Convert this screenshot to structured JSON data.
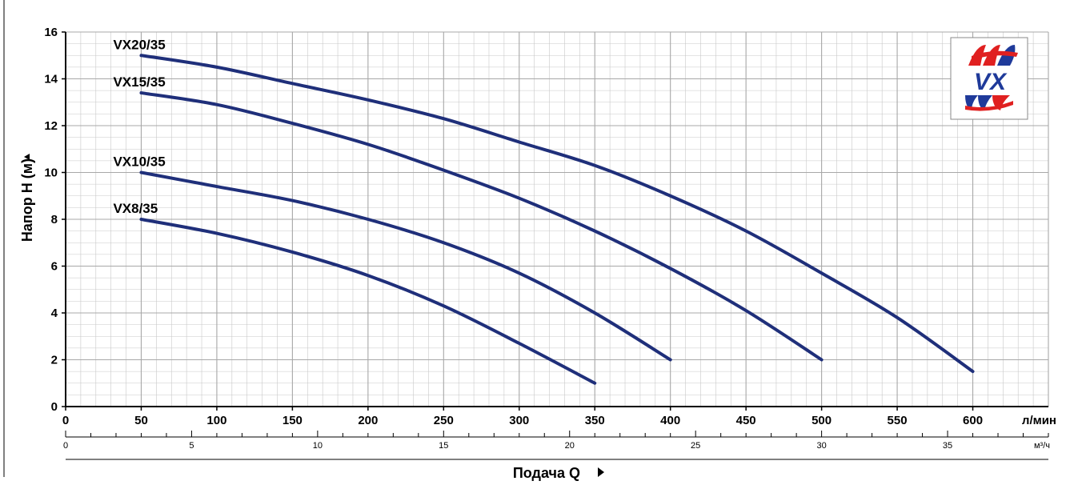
{
  "chart_data": {
    "type": "line",
    "xlabel": "Подача Q",
    "ylabel": "Напор H  (м)",
    "x_unit": "л/мин",
    "x2_unit": "м³/ч",
    "xlim": [
      0,
      650
    ],
    "ylim": [
      0,
      16
    ],
    "x2lim": [
      0,
      39
    ],
    "x_ticks": [
      0,
      50,
      100,
      150,
      200,
      250,
      300,
      350,
      400,
      450,
      500,
      550,
      600
    ],
    "x2_ticks": [
      0,
      5,
      10,
      15,
      20,
      25,
      30,
      35
    ],
    "y_ticks": [
      0,
      2,
      4,
      6,
      8,
      10,
      12,
      14,
      16
    ],
    "grid": true,
    "line_color": "#1f2f7a",
    "series": [
      {
        "name": "VX20/35",
        "x": [
          50,
          100,
          150,
          200,
          250,
          300,
          350,
          400,
          450,
          500,
          550,
          600
        ],
        "y": [
          15.0,
          14.5,
          13.8,
          13.1,
          12.3,
          11.3,
          10.3,
          9.0,
          7.5,
          5.7,
          3.8,
          1.5
        ]
      },
      {
        "name": "VX15/35",
        "x": [
          50,
          100,
          150,
          200,
          250,
          300,
          350,
          400,
          450,
          500
        ],
        "y": [
          13.4,
          12.9,
          12.1,
          11.2,
          10.1,
          8.9,
          7.5,
          5.9,
          4.1,
          2.0
        ]
      },
      {
        "name": "VX10/35",
        "x": [
          50,
          100,
          150,
          200,
          250,
          300,
          350,
          400
        ],
        "y": [
          10.0,
          9.4,
          8.8,
          8.0,
          7.0,
          5.7,
          4.0,
          2.0
        ]
      },
      {
        "name": "VX8/35",
        "x": [
          50,
          100,
          150,
          200,
          250,
          300,
          350
        ],
        "y": [
          8.0,
          7.4,
          6.6,
          5.6,
          4.3,
          2.7,
          1.0
        ]
      }
    ]
  },
  "logo": {
    "text": "VX",
    "color_red": "#e02020",
    "color_blue": "#1f3a9a"
  }
}
